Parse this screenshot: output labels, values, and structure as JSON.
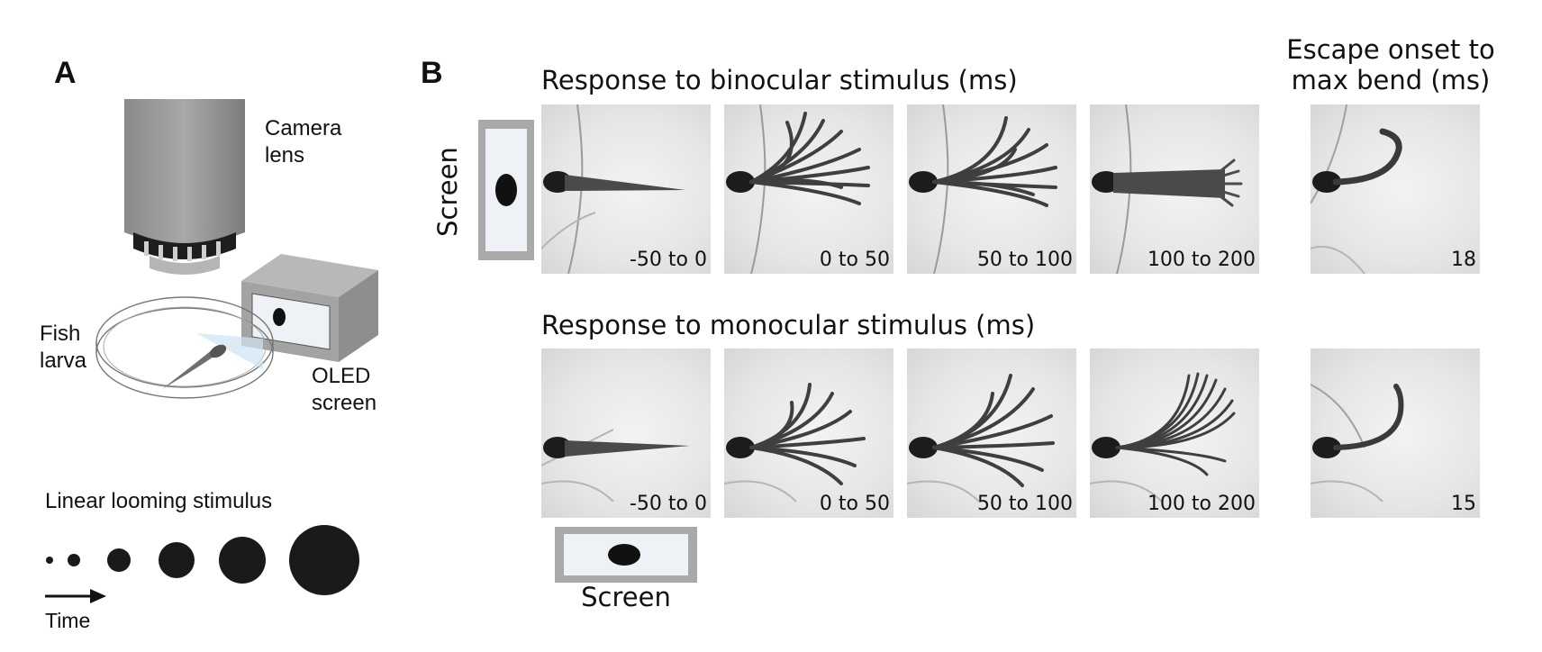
{
  "panel_a": {
    "letter": "A",
    "camera_label": [
      "Camera",
      "lens"
    ],
    "fish_label": [
      "Fish",
      "larva"
    ],
    "screen_label": [
      "OLED",
      "screen"
    ],
    "stimulus_label": "Linear looming stimulus",
    "time_label": "Time"
  },
  "panel_b": {
    "letter": "B",
    "binocular_title": "Response to binocular stimulus (ms)",
    "monocular_title": "Response to monocular stimulus (ms)",
    "max_bend_title": [
      "Escape onset to",
      "max bend (ms)"
    ],
    "screen_label_vertical": "Screen",
    "screen_label_horizontal": "Screen",
    "binocular_tiles": [
      "-50 to 0",
      "0 to 50",
      "50 to 100",
      "100 to 200"
    ],
    "binocular_max_bend": "18",
    "monocular_tiles": [
      "-50 to 0",
      "0 to 50",
      "50 to 100",
      "100 to 200"
    ],
    "monocular_max_bend": "15"
  }
}
